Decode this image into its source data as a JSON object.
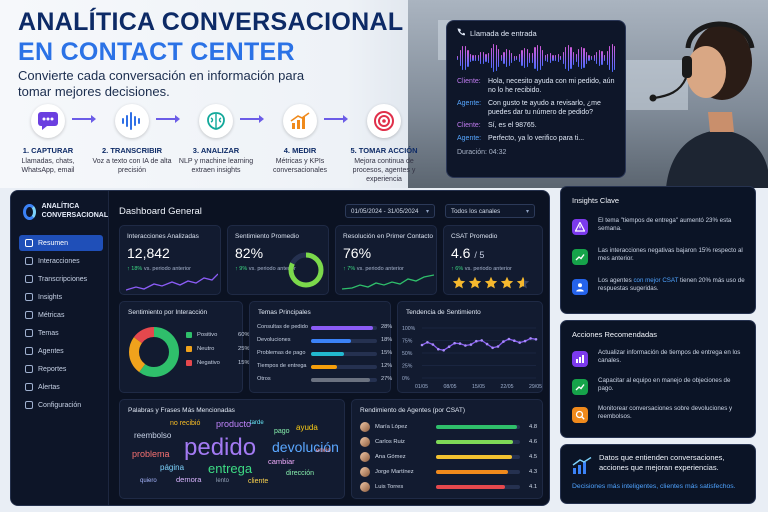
{
  "hero": {
    "title_line1": "ANALÍTICA CONVERSACIONAL",
    "title_line2": "EN CONTACT CENTER",
    "subtitle": "Convierte cada conversación en información para tomar mejores decisiones."
  },
  "steps": [
    {
      "label": "1. CAPTURAR",
      "desc": "Llamadas, chats, WhatsApp, email",
      "icon": "chat-icon",
      "color": "#6b3fe0"
    },
    {
      "label": "2. TRANSCRIBIR",
      "desc": "Voz a texto con IA de alta precisión",
      "icon": "waveform-icon",
      "color": "#2f6fe6"
    },
    {
      "label": "3. ANALIZAR",
      "desc": "NLP y machine learning extraen insights",
      "icon": "brain-icon",
      "color": "#12a89a"
    },
    {
      "label": "4. MEDIR",
      "desc": "Métricas y KPIs conversacionales",
      "icon": "chart-up-icon",
      "color": "#f08a1c"
    },
    {
      "label": "5. TOMAR ACCIÓN",
      "desc": "Mejora continua de procesos, agentes y experiencia",
      "icon": "target-icon",
      "color": "#e0304a"
    }
  ],
  "call": {
    "header": "Llamada de entrada",
    "client_label": "Cliente:",
    "agent_label": "Agente:",
    "messages": [
      {
        "who": "Cliente:",
        "text": "Hola, necesito ayuda con mi pedido, aún no lo he recibido."
      },
      {
        "who": "Agente:",
        "text": "Con gusto te ayudo a revisarlo, ¿me puedes dar tu número de pedido?"
      },
      {
        "who": "Cliente:",
        "text": "Sí, es el 98765."
      },
      {
        "who": "Agente:",
        "text": "Perfecto, ya lo verifico para ti..."
      }
    ],
    "duration": "Duración: 04:32"
  },
  "dashboard": {
    "brand": "ANALÍTICA CONVERSACIONAL",
    "title": "Dashboard General",
    "date_range": "01/05/2024 - 31/05/2024",
    "channel_filter": "Todos los canales",
    "nav": [
      "Resumen",
      "Interacciones",
      "Transcripciones",
      "Insights",
      "Métricas",
      "Temas",
      "Agentes",
      "Reportes",
      "Alertas",
      "Configuración"
    ],
    "kpis": [
      {
        "title": "Interacciones Analizadas",
        "value": "12,842",
        "delta": "↑ 18%",
        "delta_text": "vs. periodo anterior"
      },
      {
        "title": "Sentimiento Promedio",
        "value": "82%",
        "delta": "↑ 9%",
        "delta_text": "vs. periodo anterior",
        "gauge": 0.82
      },
      {
        "title": "Resolución en Primer Contacto",
        "value": "76%",
        "delta": "↑ 7%",
        "delta_text": "vs. periodo anterior"
      },
      {
        "title": "CSAT Promedio",
        "value": "4.6",
        "value_suffix": "/ 5",
        "delta": "↑ 6%",
        "delta_text": "vs. periodo anterior",
        "stars": 4.6
      }
    ],
    "sentiment": {
      "title": "Sentimiento por Interacción",
      "items": [
        {
          "label": "Positivo",
          "pct": "60%",
          "value": 60,
          "color": "#2fbf6b"
        },
        {
          "label": "Neutro",
          "pct": "25%",
          "value": 25,
          "color": "#f0a21c"
        },
        {
          "label": "Negativo",
          "pct": "15%",
          "value": 15,
          "color": "#e5484d"
        }
      ]
    },
    "topics": {
      "title": "Temas Principales",
      "items": [
        {
          "label": "Consultas de pedido",
          "pct": "28%",
          "value": 28,
          "color": "#8b5cf6"
        },
        {
          "label": "Devoluciones",
          "pct": "18%",
          "value": 18,
          "color": "#3b82f6"
        },
        {
          "label": "Problemas de pago",
          "pct": "15%",
          "value": 15,
          "color": "#22b8cf"
        },
        {
          "label": "Tiempos de entrega",
          "pct": "12%",
          "value": 12,
          "color": "#f59e0b"
        },
        {
          "label": "Otros",
          "pct": "27%",
          "value": 27,
          "color": "#6b7280"
        }
      ]
    },
    "trend": {
      "title": "Tendencia de Sentimiento",
      "y_ticks": [
        "100%",
        "75%",
        "50%",
        "25%",
        "0%"
      ],
      "x_ticks": [
        "01/05",
        "08/05",
        "15/05",
        "22/05",
        "29/05"
      ]
    },
    "words": {
      "title": "Palabras y Frases Más Mencionadas",
      "list": [
        "pedido",
        "devolución",
        "entrega",
        "producto",
        "problema",
        "reembolso",
        "ayuda",
        "pago",
        "cambiar",
        "no recibió",
        "página",
        "dirección",
        "demora",
        "lento",
        "cliente",
        "tarde",
        "quiero",
        "envío"
      ]
    },
    "agents": {
      "title": "Rendimiento de Agentes (por CSAT)",
      "items": [
        {
          "name": "María López",
          "score": "4.8",
          "value": 4.8,
          "color": "#2fbf6b"
        },
        {
          "name": "Carlos Ruiz",
          "score": "4.6",
          "value": 4.6,
          "color": "#7ed957"
        },
        {
          "name": "Ana Gómez",
          "score": "4.5",
          "value": 4.5,
          "color": "#f2c230"
        },
        {
          "name": "Jorge Martínez",
          "score": "4.3",
          "value": 4.3,
          "color": "#f08a1c"
        },
        {
          "name": "Luis Torres",
          "score": "4.1",
          "value": 4.1,
          "color": "#e5484d"
        }
      ]
    }
  },
  "insights": {
    "title": "Insights Clave",
    "items": [
      {
        "text": "El tema \"tiempos de entrega\" aumentó 23% esta semana.",
        "icon": "alert-icon",
        "color": "#7c3aed"
      },
      {
        "text": "Las interacciones negativas bajaron 15% respecto al mes anterior.",
        "icon": "trend-icon",
        "color": "#16a34a"
      },
      {
        "text": "Los agentes con mejor CSAT tienen 20% más uso de respuestas sugeridas.",
        "highlight": "con mejor CSAT",
        "icon": "agent-icon",
        "color": "#2563eb"
      }
    ]
  },
  "actions": {
    "title": "Acciones Recomendadas",
    "items": [
      {
        "text": "Actualizar información de tiempos de entrega en los canales.",
        "icon": "chart-icon",
        "color": "#7c3aed"
      },
      {
        "text": "Capacitar al equipo en manejo de objeciones de pago.",
        "icon": "trend-icon",
        "color": "#16a34a"
      },
      {
        "text": "Monitorear conversaciones sobre devoluciones y reembolsos.",
        "icon": "monitor-icon",
        "color": "#f08a1c"
      }
    ]
  },
  "footer": {
    "headline": "Datos que entienden conversaciones, acciones que mejoran experiencias.",
    "tagline": "Decisiones más inteligentes, clientes más satisfechos."
  }
}
